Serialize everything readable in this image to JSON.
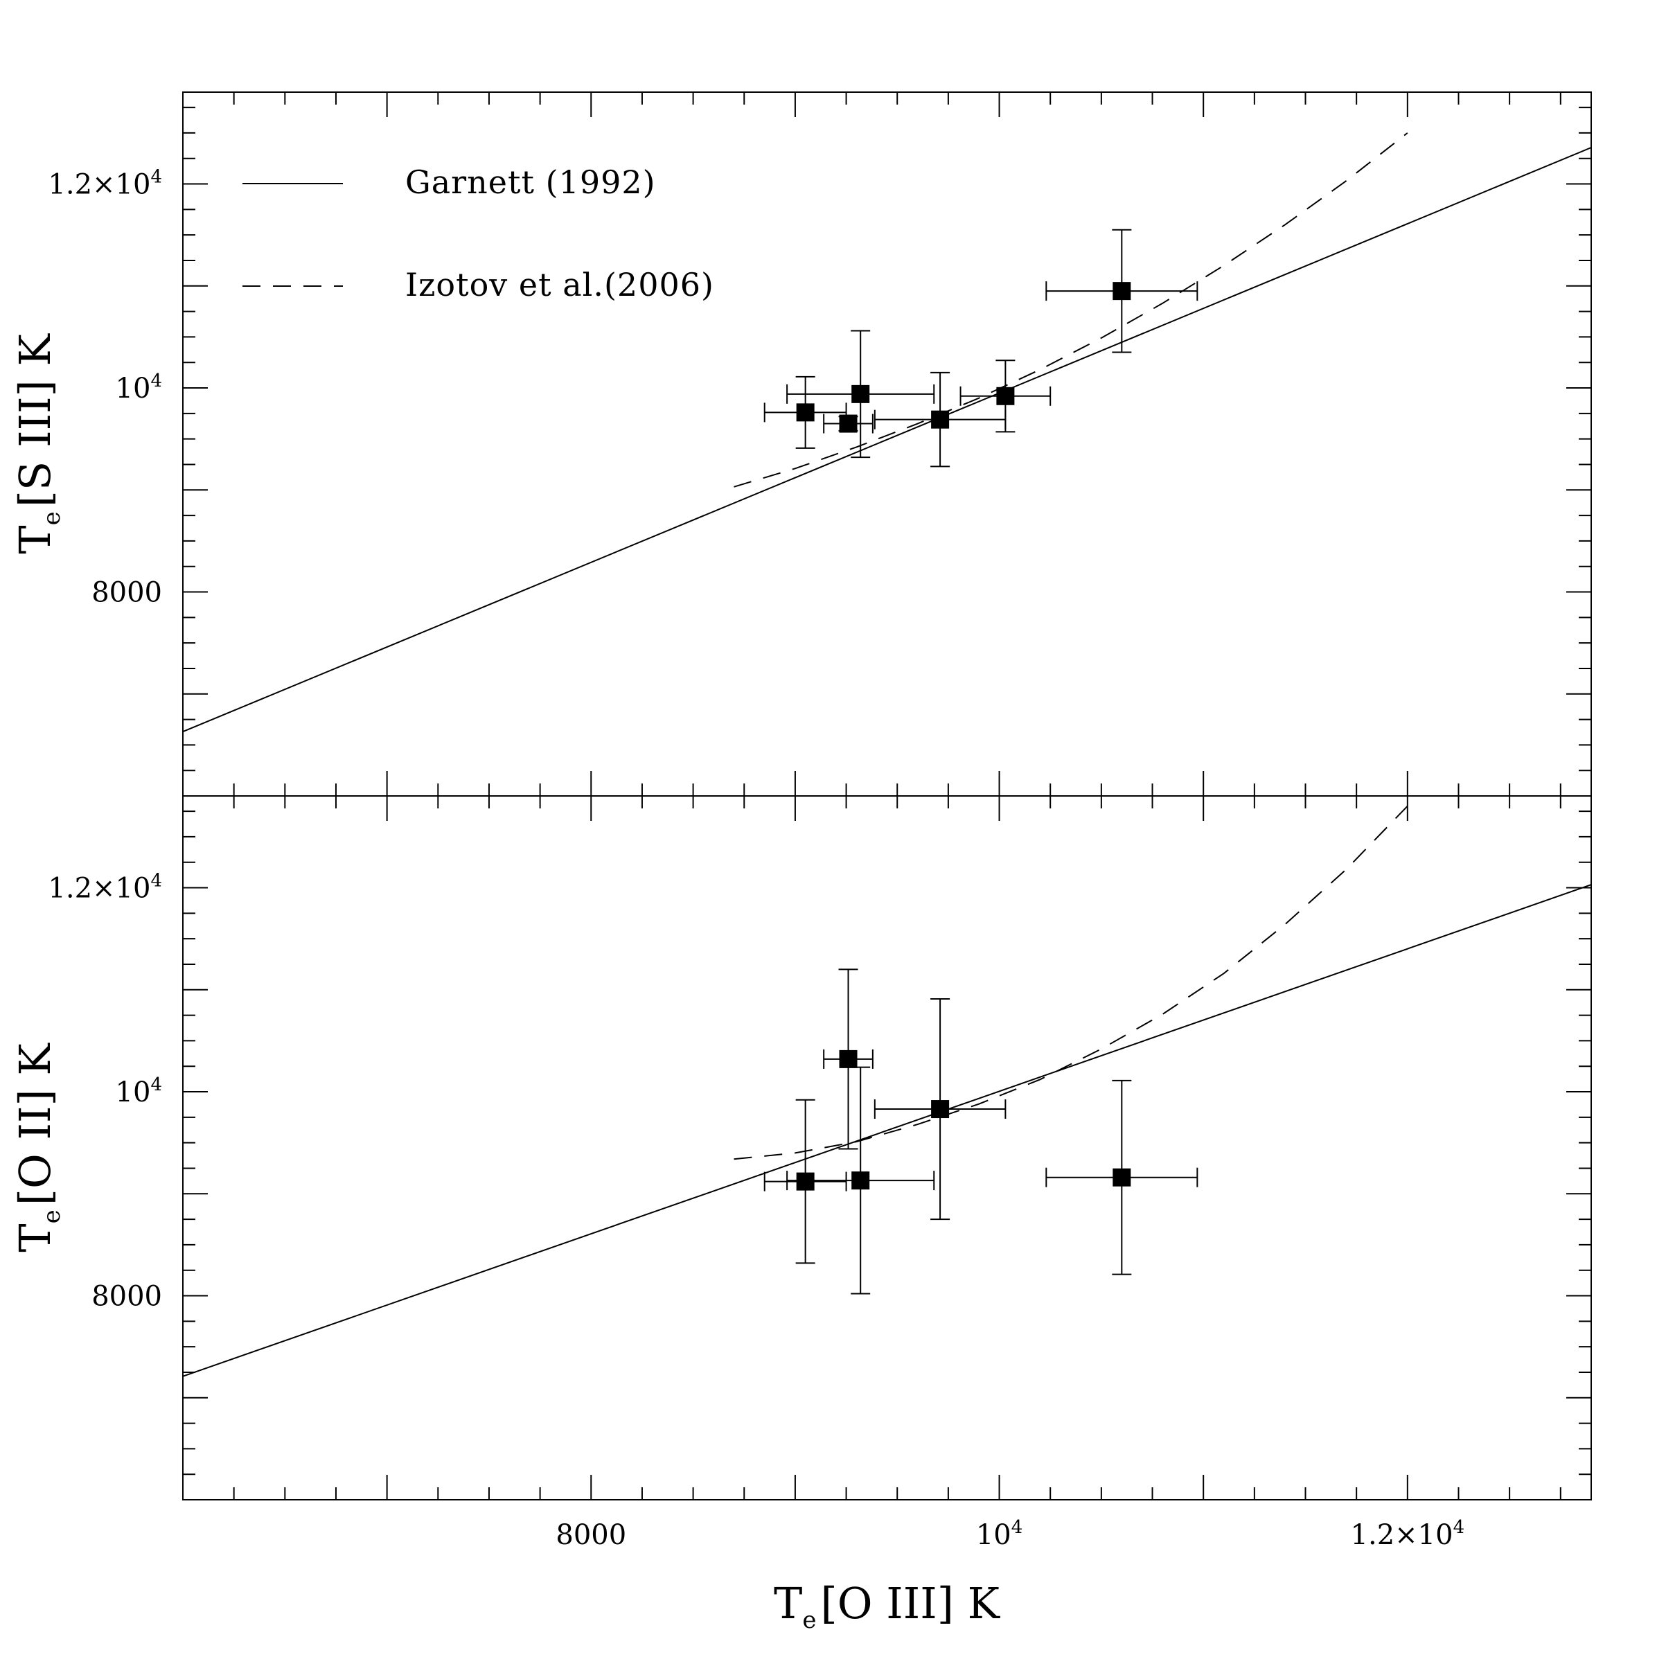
{
  "chart_data": [
    {
      "type": "scatter",
      "panel": "top",
      "ylabel": {
        "main": "T",
        "sub": "e",
        "rest": "[S III] K"
      },
      "xlim": [
        6000,
        12900
      ],
      "ylim": [
        6000,
        12900
      ],
      "yticks": [
        {
          "value": 8000,
          "label": "8000"
        },
        {
          "value": 10000,
          "label": "10",
          "exp": "4"
        },
        {
          "value": 12000,
          "label": "1.2×10",
          "exp": "4"
        }
      ],
      "series": [
        {
          "name": "Garnett (1992)",
          "kind": "line",
          "style": "solid",
          "points": [
            [
              6000,
              6630
            ],
            [
              12900,
              12357
            ]
          ]
        },
        {
          "name": "Izotov et al.(2006)",
          "kind": "line",
          "style": "dashed",
          "points": [
            [
              8700,
              9030
            ],
            [
              9000,
              9210
            ],
            [
              9300,
              9420
            ],
            [
              9600,
              9650
            ],
            [
              9900,
              9900
            ],
            [
              10200,
              10180
            ],
            [
              10500,
              10490
            ],
            [
              10800,
              10830
            ],
            [
              11100,
              11200
            ],
            [
              11400,
              11600
            ],
            [
              11700,
              12030
            ],
            [
              12000,
              12500
            ]
          ]
        },
        {
          "kind": "points",
          "points": [
            {
              "x": 9050,
              "y": 9760,
              "xerr": 200,
              "yerr": 350
            },
            {
              "x": 9260,
              "y": 9650,
              "xerr": 120,
              "yerr": 70
            },
            {
              "x": 9320,
              "y": 9940,
              "xerr": 360,
              "yerr": 620
            },
            {
              "x": 9710,
              "y": 9690,
              "xerr": 320,
              "yerr": 460
            },
            {
              "x": 10030,
              "y": 9920,
              "xerr": 220,
              "yerr": 350
            },
            {
              "x": 10600,
              "y": 10950,
              "xerr": 370,
              "yerr": 600
            }
          ]
        }
      ]
    },
    {
      "type": "scatter",
      "panel": "bottom",
      "xlabel": {
        "main": "T",
        "sub": "e",
        "rest": "[O III] K"
      },
      "ylabel": {
        "main": "T",
        "sub": "e",
        "rest": "[O II] K"
      },
      "xlim": [
        6000,
        12900
      ],
      "ylim": [
        6000,
        12900
      ],
      "xticks": [
        {
          "value": 8000,
          "label": "8000"
        },
        {
          "value": 10000,
          "label": "10",
          "exp": "4"
        },
        {
          "value": 12000,
          "label": "1.2×10",
          "exp": "4"
        }
      ],
      "yticks": [
        {
          "value": 8000,
          "label": "8000"
        },
        {
          "value": 10000,
          "label": "10",
          "exp": "4"
        },
        {
          "value": 12000,
          "label": "1.2×10",
          "exp": "4"
        }
      ],
      "series": [
        {
          "name": "Garnett (1992)",
          "kind": "line",
          "style": "solid",
          "points": [
            [
              6000,
              7210
            ],
            [
              12900,
              12030
            ]
          ]
        },
        {
          "name": "Izotov et al.(2006)",
          "kind": "line",
          "style": "dashed",
          "points": [
            [
              8700,
              9340
            ],
            [
              9000,
              9400
            ],
            [
              9300,
              9510
            ],
            [
              9600,
              9680
            ],
            [
              9900,
              9880
            ],
            [
              10200,
              10120
            ],
            [
              10500,
              10420
            ],
            [
              10800,
              10760
            ],
            [
              11100,
              11160
            ],
            [
              11400,
              11640
            ],
            [
              11700,
              12180
            ],
            [
              12000,
              12800
            ]
          ]
        },
        {
          "kind": "points",
          "points": [
            {
              "x": 9050,
              "y": 9120,
              "xerr": 200,
              "yerr": 800
            },
            {
              "x": 9260,
              "y": 10320,
              "xerr": 120,
              "yerr": 880
            },
            {
              "x": 9320,
              "y": 9130,
              "xerr": 360,
              "yerr": 1110
            },
            {
              "x": 9710,
              "y": 9830,
              "xerr": 320,
              "yerr": 1080
            },
            {
              "x": 10600,
              "y": 9160,
              "xerr": 370,
              "yerr": 950
            }
          ]
        }
      ]
    }
  ],
  "legend": {
    "placement": "top-left",
    "items": [
      {
        "label": "Garnett (1992)",
        "style": "solid"
      },
      {
        "label": "Izotov et al.(2006)",
        "style": "dashed"
      }
    ]
  }
}
